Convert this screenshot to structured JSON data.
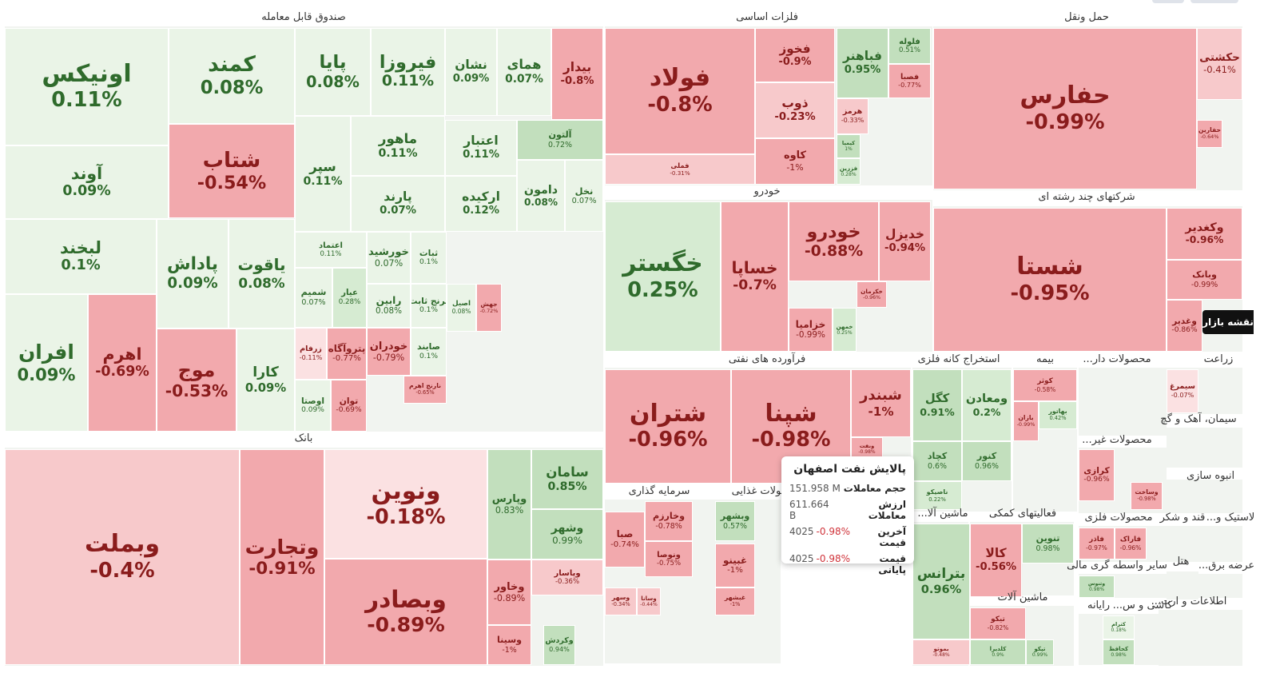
{
  "sectors": [
    {
      "title": "صندوق قابل معامله",
      "tiles": [
        {
          "name": "اونیکس",
          "change": "0.11%"
        },
        {
          "name": "کمند",
          "change": "0.08%"
        },
        {
          "name": "پایا",
          "change": "0.08%"
        },
        {
          "name": "فیروزا",
          "change": "0.11%"
        },
        {
          "name": "نشان",
          "change": "0.09%"
        },
        {
          "name": "همای",
          "change": "0.07%"
        },
        {
          "name": "بیدار",
          "change": "-0.8%"
        },
        {
          "name": "آوند",
          "change": "0.09%"
        },
        {
          "name": "شتاب",
          "change": "-0.54%"
        },
        {
          "name": "سپر",
          "change": "0.11%"
        },
        {
          "name": "ماهور",
          "change": "0.11%"
        },
        {
          "name": "اعتبار",
          "change": "0.11%"
        },
        {
          "name": "آلتون",
          "change": "0.72%"
        },
        {
          "name": "پارند",
          "change": "0.07%"
        },
        {
          "name": "ارکیده",
          "change": "0.12%"
        },
        {
          "name": "دامون",
          "change": "0.08%"
        },
        {
          "name": "نخل",
          "change": "0.07%"
        },
        {
          "name": "لبخند",
          "change": "0.1%"
        },
        {
          "name": "پاداش",
          "change": "0.09%"
        },
        {
          "name": "یاقوت",
          "change": "0.08%"
        },
        {
          "name": "افران",
          "change": "0.09%"
        },
        {
          "name": "اهرم",
          "change": "-0.69%"
        },
        {
          "name": "موج",
          "change": "-0.53%"
        },
        {
          "name": "کارا",
          "change": "0.09%"
        },
        {
          "name": "اعتماد",
          "change": "0.11%"
        },
        {
          "name": "خورشید",
          "change": "0.07%"
        },
        {
          "name": "ثبات",
          "change": "0.1%"
        },
        {
          "name": "شمیم",
          "change": "0.07%"
        },
        {
          "name": "عیار",
          "change": "0.28%"
        },
        {
          "name": "رابین",
          "change": "0.08%"
        },
        {
          "name": "ترنج ثابت",
          "change": "0.1%"
        },
        {
          "name": "زرفام",
          "change": "-0.11%"
        },
        {
          "name": "پتروآگاه",
          "change": "-0.77%"
        },
        {
          "name": "خودران",
          "change": "-0.79%"
        },
        {
          "name": "صایند",
          "change": "0.1%"
        },
        {
          "name": "اوصتا",
          "change": "0.09%"
        },
        {
          "name": "توان",
          "change": "-0.69%"
        },
        {
          "name": "نارنج اهرم",
          "change": "-0.65%"
        },
        {
          "name": "جهش",
          "change": "-0.72%"
        },
        {
          "name": "اصیل",
          "change": "0.08%"
        }
      ]
    },
    {
      "title": "فلزات اساسی",
      "tiles": [
        {
          "name": "فولاد",
          "change": "-0.8%"
        },
        {
          "name": "فخوز",
          "change": "-0.9%"
        },
        {
          "name": "ذوب",
          "change": "-0.23%"
        },
        {
          "name": "کاوه",
          "change": "-1%"
        },
        {
          "name": "فملی",
          "change": "-0.31%"
        },
        {
          "name": "فباهنر",
          "change": "0.95%"
        },
        {
          "name": "فلوله",
          "change": "0.51%"
        },
        {
          "name": "فصبا",
          "change": "-0.77%"
        },
        {
          "name": "هرمز",
          "change": "-0.33%"
        },
        {
          "name": "کیمیا",
          "change": "1%"
        },
        {
          "name": "فزرین",
          "change": "0.28%"
        }
      ]
    },
    {
      "title": "حمل ونقل",
      "tiles": [
        {
          "name": "حفارس",
          "change": "-0.99%"
        },
        {
          "name": "حکشتی",
          "change": "-0.41%"
        },
        {
          "name": "حفارین",
          "change": "-0.64%"
        }
      ]
    },
    {
      "title": "شرکتهای چند رشته ای",
      "tiles": [
        {
          "name": "شستا",
          "change": "-0.95%"
        },
        {
          "name": "وکغدیر",
          "change": "-0.96%"
        },
        {
          "name": "وبانک",
          "change": "-0.99%"
        },
        {
          "name": "وغدیر",
          "change": "-0.86%"
        }
      ]
    },
    {
      "title": "خودرو",
      "tiles": [
        {
          "name": "خگستر",
          "change": "0.25%"
        },
        {
          "name": "خساپا",
          "change": "-0.7%"
        },
        {
          "name": "خودرو",
          "change": "-0.88%"
        },
        {
          "name": "خدیزل",
          "change": "-0.94%"
        },
        {
          "name": "خزامیا",
          "change": "-0.99%"
        },
        {
          "name": "خمهن",
          "change": "0.25%"
        },
        {
          "name": "خکرمان",
          "change": "-0.96%"
        }
      ]
    },
    {
      "title": "فرآورده های نفتی",
      "tiles": [
        {
          "name": "شتران",
          "change": "-0.96%"
        },
        {
          "name": "شپنا",
          "change": "-0.98%"
        },
        {
          "name": "شبندر",
          "change": "-1%"
        },
        {
          "name": "ونفت",
          "change": "-0.98%"
        }
      ]
    },
    {
      "title": "بانک",
      "tiles": [
        {
          "name": "وبملت",
          "change": "-0.4%"
        },
        {
          "name": "وتجارت",
          "change": "-0.91%"
        },
        {
          "name": "ونوین",
          "change": "-0.18%"
        },
        {
          "name": "وبصادر",
          "change": "-0.89%"
        },
        {
          "name": "وپارس",
          "change": "0.83%"
        },
        {
          "name": "سامان",
          "change": "0.85%"
        },
        {
          "name": "وشهر",
          "change": "0.99%"
        },
        {
          "name": "وخاور",
          "change": "-0.89%"
        },
        {
          "name": "وپاسار",
          "change": "-0.36%"
        },
        {
          "name": "وسینا",
          "change": "-1%"
        },
        {
          "name": "وکردش",
          "change": "0.94%"
        }
      ]
    },
    {
      "title": "استخراج کانه فلزی",
      "tiles": [
        {
          "name": "کگل",
          "change": "0.91%"
        },
        {
          "name": "ومعادن",
          "change": "0.2%"
        },
        {
          "name": "کچاد",
          "change": "0.6%"
        },
        {
          "name": "کنور",
          "change": "0.96%"
        },
        {
          "name": "ناصیکو",
          "change": "0.22%"
        }
      ]
    },
    {
      "title": "بیمه",
      "tiles": [
        {
          "name": "کوثر",
          "change": "-0.58%"
        },
        {
          "name": "بهاتور",
          "change": "0.42%"
        },
        {
          "name": "بازان",
          "change": "-0.99%"
        }
      ]
    },
    {
      "title": "محصولات دار...",
      "tiles": []
    },
    {
      "title": "زراعت",
      "tiles": [
        {
          "name": "سیمرغ",
          "change": "-0.07%"
        }
      ]
    },
    {
      "title": "سیمان، آهک و گچ",
      "tiles": []
    },
    {
      "title": "محصولات غیر...",
      "tiles": [
        {
          "name": "کرازی",
          "change": "-0.96%"
        }
      ]
    },
    {
      "title": "انبوه سازی",
      "tiles": [
        {
          "name": "وساخت",
          "change": "-0.98%"
        }
      ]
    },
    {
      "title": "سرمایه گذاری",
      "tiles": [
        {
          "name": "وخارزم",
          "change": "-0.78%"
        },
        {
          "name": "ونوصا",
          "change": "-0.75%"
        },
        {
          "name": "صبا",
          "change": "-0.74%"
        },
        {
          "name": "وسهر",
          "change": "-0.34%"
        },
        {
          "name": "وسانا",
          "change": "-0.44%"
        }
      ]
    },
    {
      "title": "محصولات غذایی",
      "tiles": [
        {
          "name": "وبشهر",
          "change": "0.57%"
        },
        {
          "name": "غبینو",
          "change": "-1%"
        },
        {
          "name": "غبشهر",
          "change": "-1%"
        }
      ]
    },
    {
      "title": "ماشین آلا...",
      "tiles": [
        {
          "name": "بترانس",
          "change": "0.96%"
        },
        {
          "name": "بموتو",
          "change": "-0.48%"
        }
      ]
    },
    {
      "title": "فعالیتهای کمکی",
      "tiles": [
        {
          "name": "کالا",
          "change": "-0.56%"
        },
        {
          "name": "تنوین",
          "change": "0.98%"
        }
      ]
    },
    {
      "title": "ماشین آلات",
      "tiles": [
        {
          "name": "تیکو",
          "change": "-0.82%"
        },
        {
          "name": "کلدیرا",
          "change": "0.9%"
        },
        {
          "name": "تپکو",
          "change": "0.99%"
        }
      ]
    },
    {
      "title": "محصولات فلزی",
      "tiles": [
        {
          "name": "فاذر",
          "change": "-0.97%"
        },
        {
          "name": "فاراک",
          "change": "-0.96%"
        }
      ]
    },
    {
      "title": "قند و شکر",
      "tiles": []
    },
    {
      "title": "لاستیک و...",
      "tiles": []
    },
    {
      "title": "هتل",
      "tiles": []
    },
    {
      "title": "سایر واسطه گری مالی",
      "tiles": [
        {
          "name": "وثنوس",
          "change": "0.98%"
        }
      ]
    },
    {
      "title": "عرضه برق...",
      "tiles": []
    },
    {
      "title": "رایانه",
      "tiles": []
    },
    {
      "title": "کاشی و س...",
      "tiles": [
        {
          "name": "کترام",
          "change": "0.18%"
        },
        {
          "name": "کحافظ",
          "change": "0.98%"
        }
      ]
    },
    {
      "title": "اطلاعات و ارت...",
      "tiles": []
    }
  ],
  "tooltip": {
    "title": "پالایش نفت اصفهان",
    "rows": [
      {
        "label": "حجم معاملات",
        "value": "151.958 M"
      },
      {
        "label": "ارزش معاملات",
        "value": "611.664 B"
      },
      {
        "label": "آخرین قیمت",
        "value": "4025",
        "change": "-0.98%"
      },
      {
        "label": "قیمت پایانی",
        "value": "4025",
        "change": "-0.98%"
      }
    ]
  },
  "side_tab": "نقشه بازار"
}
